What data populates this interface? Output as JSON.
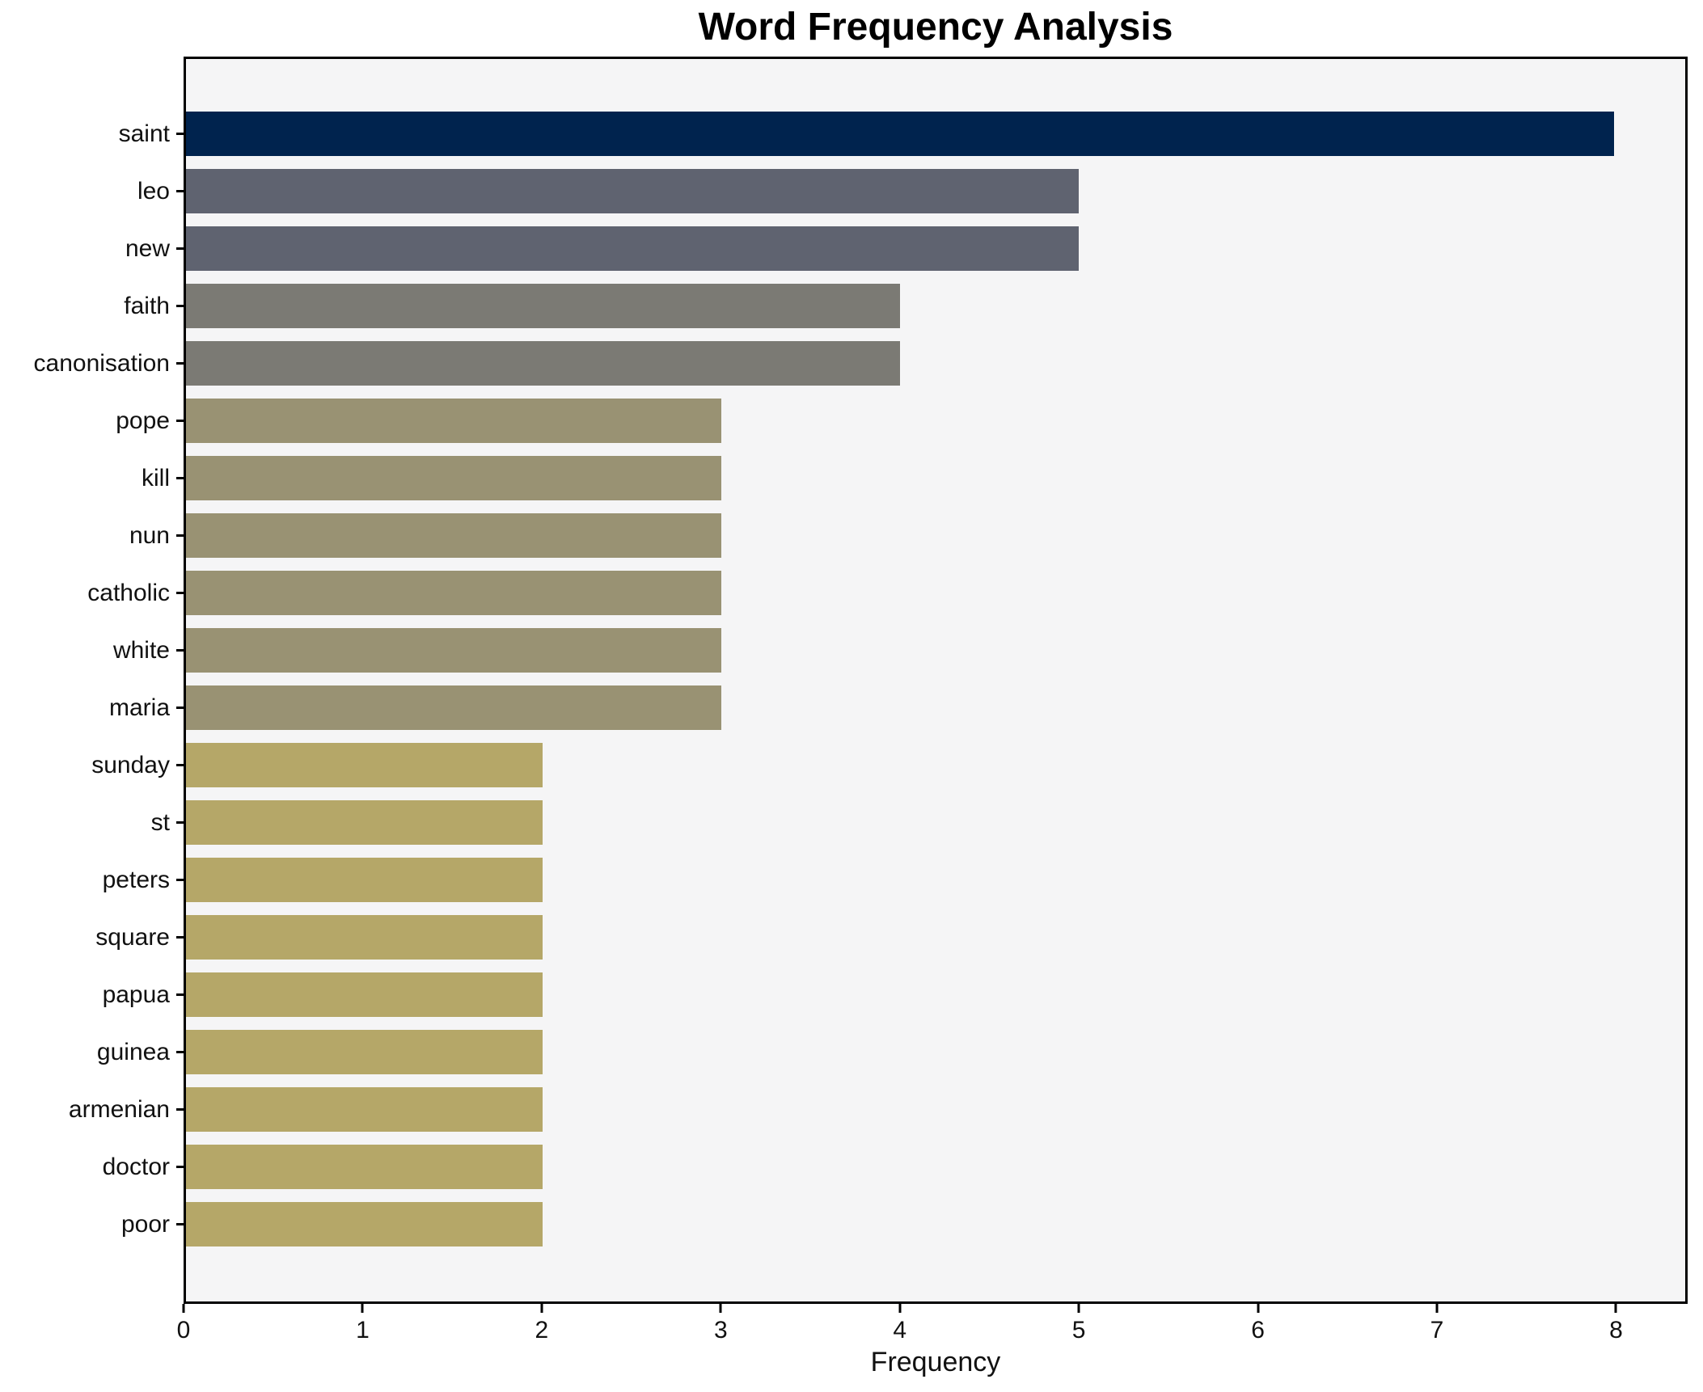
{
  "chart_data": {
    "type": "bar",
    "orientation": "horizontal",
    "title": "Word Frequency Analysis",
    "xlabel": "Frequency",
    "ylabel": "",
    "categories": [
      "saint",
      "leo",
      "new",
      "faith",
      "canonisation",
      "pope",
      "kill",
      "nun",
      "catholic",
      "white",
      "maria",
      "sunday",
      "st",
      "peters",
      "square",
      "papua",
      "guinea",
      "armenian",
      "doctor",
      "poor"
    ],
    "values": [
      8,
      5,
      5,
      4,
      4,
      3,
      3,
      3,
      3,
      3,
      3,
      2,
      2,
      2,
      2,
      2,
      2,
      2,
      2,
      2
    ],
    "bar_colors": [
      "#00234e",
      "#5f6370",
      "#5f6370",
      "#7b7a74",
      "#7b7a74",
      "#999273",
      "#999273",
      "#999273",
      "#999273",
      "#999273",
      "#999273",
      "#b5a768",
      "#b5a768",
      "#b5a768",
      "#b5a768",
      "#b5a768",
      "#b5a768",
      "#b5a768",
      "#b5a768",
      "#b5a768"
    ],
    "xlim": [
      0,
      8.4
    ],
    "xticks": [
      0,
      1,
      2,
      3,
      4,
      5,
      6,
      7,
      8
    ],
    "grid": false,
    "legend": false,
    "plot_background": "#f5f5f6",
    "spine_color": "#000000",
    "text_color": "#111111"
  }
}
